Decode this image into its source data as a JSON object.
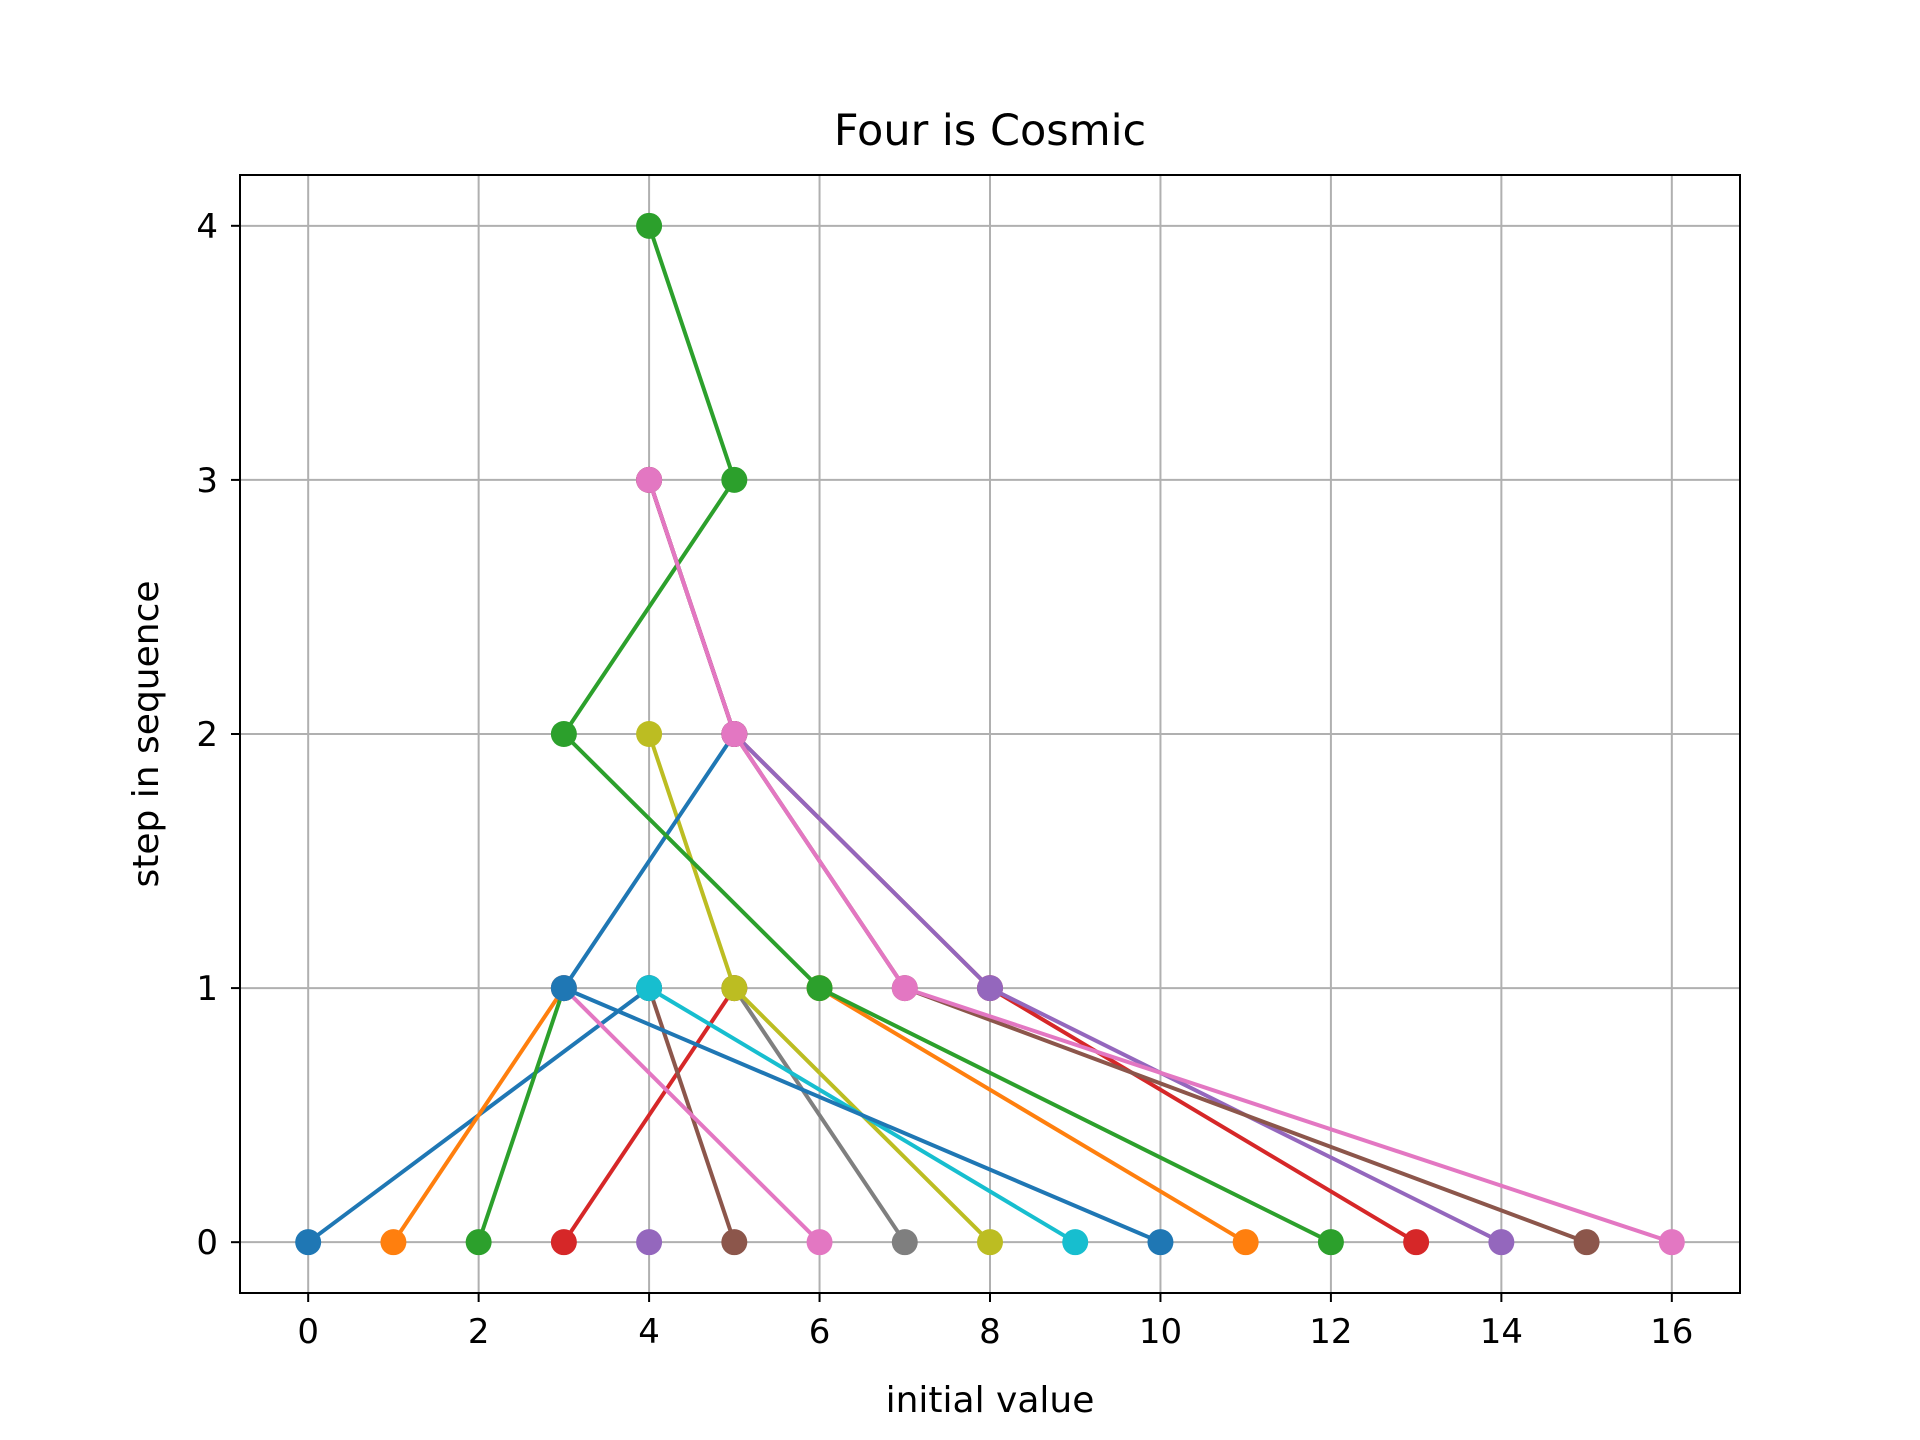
{
  "chart_data": {
    "type": "line",
    "title": "Four is Cosmic",
    "xlabel": "initial value",
    "ylabel": "step in sequence",
    "xlim": [
      -0.8,
      16.8
    ],
    "ylim": [
      -0.2,
      4.2
    ],
    "xticks": [
      0,
      2,
      4,
      6,
      8,
      10,
      12,
      14,
      16
    ],
    "yticks": [
      0,
      1,
      2,
      3,
      4
    ],
    "xtick_labels": [
      "0",
      "2",
      "4",
      "6",
      "8",
      "10",
      "12",
      "14",
      "16"
    ],
    "ytick_labels": [
      "0",
      "1",
      "2",
      "3",
      "4"
    ],
    "grid": true,
    "legend": "none",
    "series": [
      {
        "color": "#1f77b4",
        "x": [
          0,
          4
        ],
        "y": [
          0,
          1
        ]
      },
      {
        "color": "#ff7f0e",
        "x": [
          1,
          3
        ],
        "y": [
          0,
          1
        ]
      },
      {
        "color": "#2ca02c",
        "x": [
          2,
          3
        ],
        "y": [
          0,
          1
        ]
      },
      {
        "color": "#d62728",
        "x": [
          3,
          5
        ],
        "y": [
          0,
          1
        ]
      },
      {
        "color": "#9467bd",
        "x": [
          4
        ],
        "y": [
          0
        ]
      },
      {
        "color": "#8c564b",
        "x": [
          5,
          4
        ],
        "y": [
          0,
          1
        ]
      },
      {
        "color": "#e377c2",
        "x": [
          6,
          3
        ],
        "y": [
          0,
          1
        ]
      },
      {
        "color": "#7f7f7f",
        "x": [
          7,
          5
        ],
        "y": [
          0,
          1
        ]
      },
      {
        "color": "#bcbd22",
        "x": [
          8,
          5,
          4
        ],
        "y": [
          0,
          1,
          2
        ]
      },
      {
        "color": "#17becf",
        "x": [
          9,
          4
        ],
        "y": [
          0,
          1
        ]
      },
      {
        "color": "#1f77b4",
        "x": [
          10,
          3,
          5
        ],
        "y": [
          0,
          1,
          2
        ]
      },
      {
        "color": "#ff7f0e",
        "x": [
          11,
          6
        ],
        "y": [
          0,
          1
        ]
      },
      {
        "color": "#2ca02c",
        "x": [
          12,
          6,
          3,
          5,
          4
        ],
        "y": [
          0,
          1,
          2,
          3,
          4
        ]
      },
      {
        "color": "#d62728",
        "x": [
          13,
          8,
          5,
          4
        ],
        "y": [
          0,
          1,
          2,
          3
        ]
      },
      {
        "color": "#9467bd",
        "x": [
          14,
          8,
          5,
          4
        ],
        "y": [
          0,
          1,
          2,
          3
        ]
      },
      {
        "color": "#8c564b",
        "x": [
          15,
          7,
          5,
          4
        ],
        "y": [
          0,
          1,
          2,
          3
        ]
      },
      {
        "color": "#e377c2",
        "x": [
          16,
          7,
          5,
          4
        ],
        "y": [
          0,
          1,
          2,
          3
        ]
      }
    ]
  }
}
